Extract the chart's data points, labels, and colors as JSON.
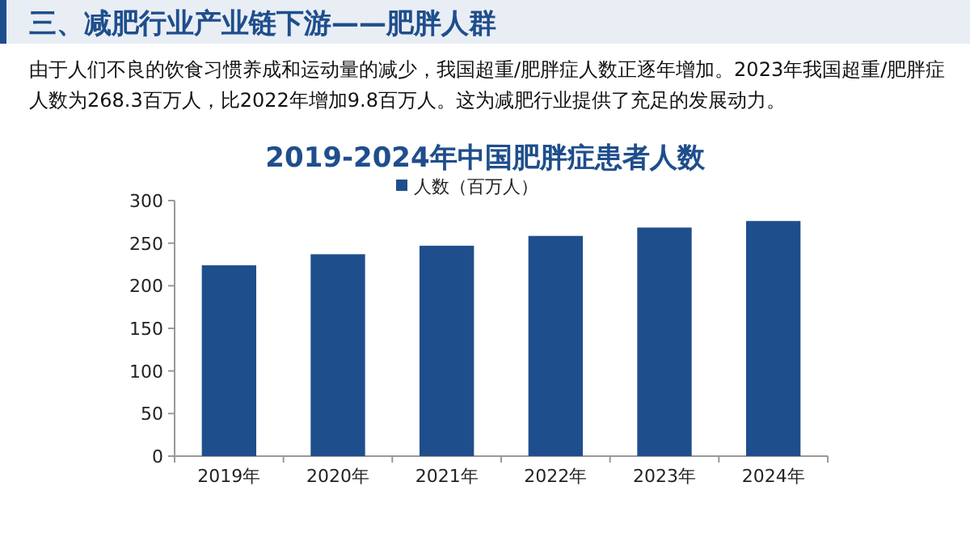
{
  "chart_data": {
    "type": "bar",
    "title": "2019-2024年中国肥胖症患者人数",
    "annotations": [
      "三、减肥行业产业链下游——肥胖人群",
      "由于人们不良的饮食习惯养成和运动量的减少，我国超重/肥胖症人数正逐年增加。2023年我国超重/肥胖症人数为268.3百万人，比2022年增加9.8百万人。这为减肥行业提供了充足的发展动力。"
    ],
    "categories": [
      "2019年",
      "2020年",
      "2021年",
      "2022年",
      "2023年",
      "2024年"
    ],
    "series": [
      {
        "name": "人数（百万人）",
        "color": "#1f4e8c",
        "values": [
          224,
          237,
          247,
          258.5,
          268.3,
          276
        ]
      }
    ],
    "ylim": [
      0,
      300
    ],
    "yticks": [
      0,
      50,
      100,
      150,
      200,
      250,
      300
    ],
    "legend": "top",
    "grid": false
  }
}
